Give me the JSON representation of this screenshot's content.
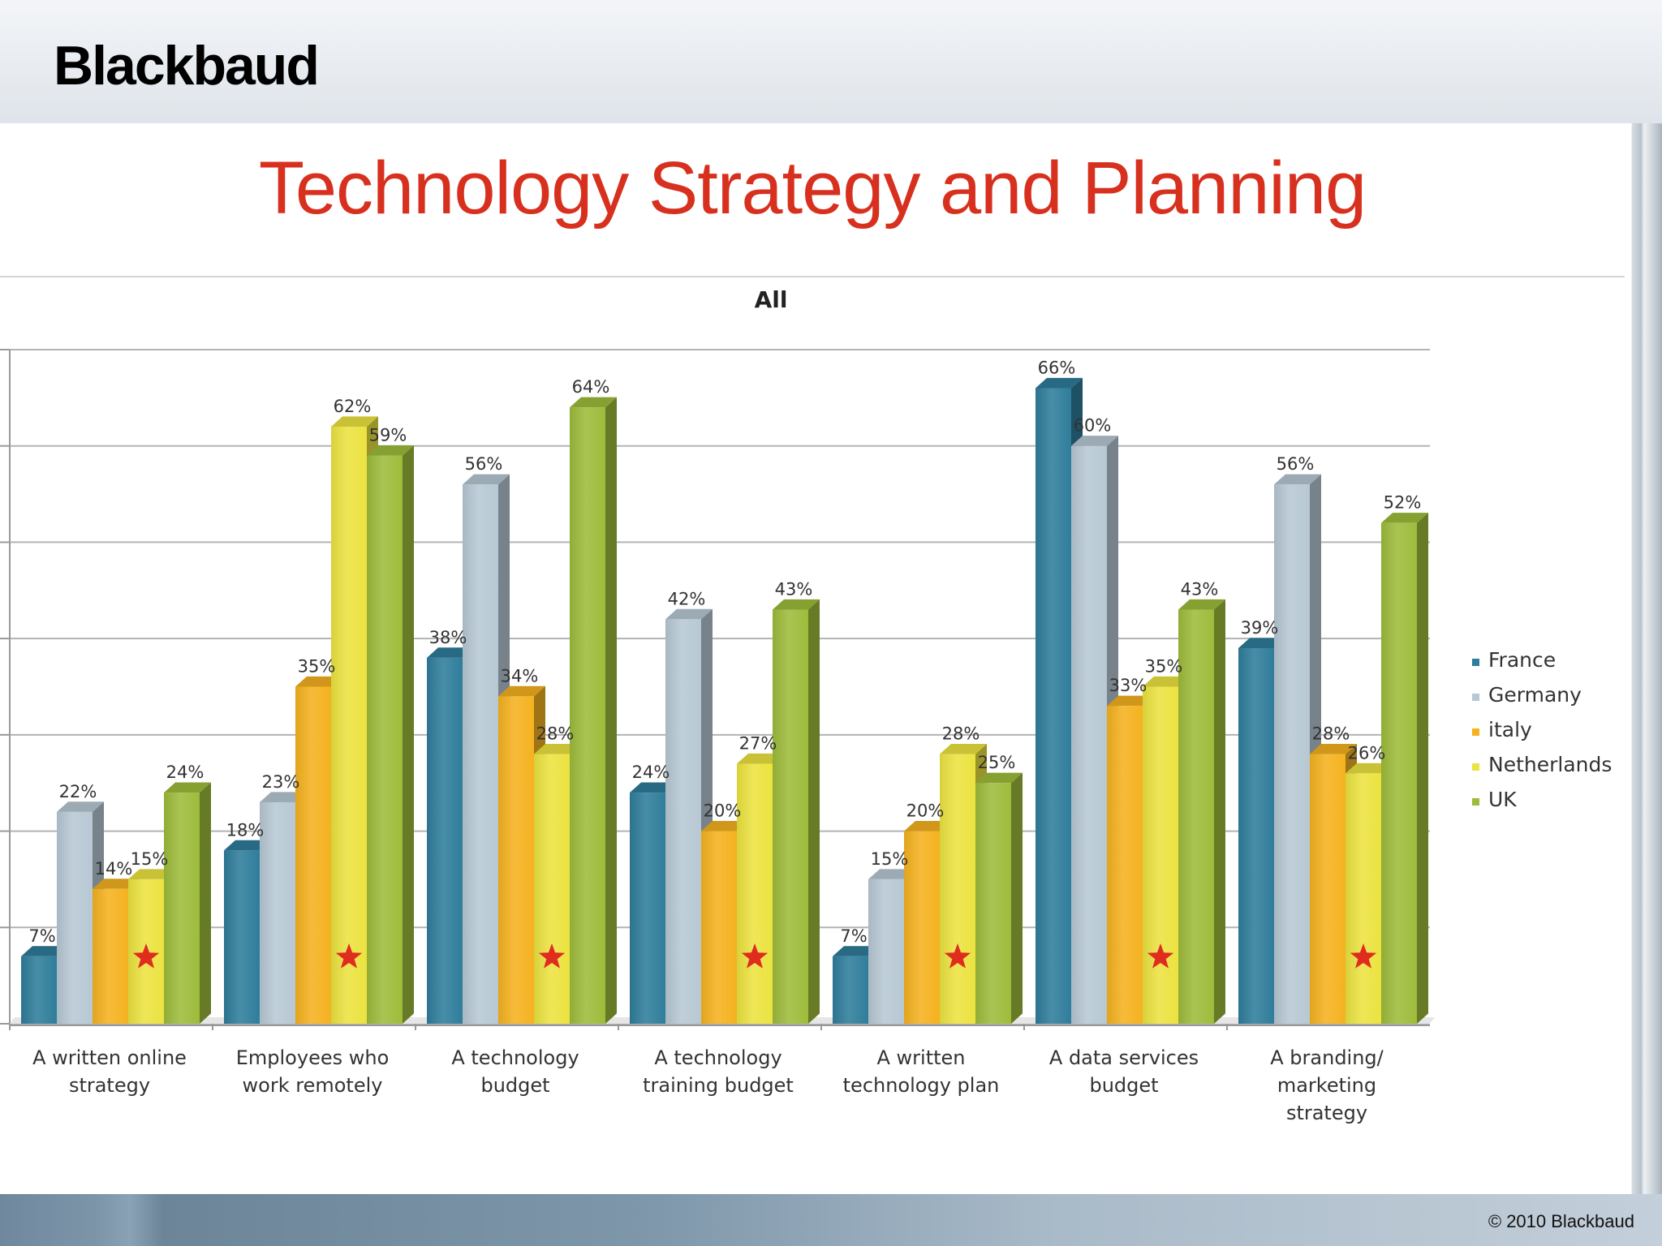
{
  "header": {
    "logo_text": "Blackbaud"
  },
  "slide": {
    "title": "Technology Strategy and Planning"
  },
  "footer": {
    "copyright": "© 2010 Blackbaud"
  },
  "colors": {
    "title": "#d8301e",
    "France": "#2f7d9b",
    "Germany": "#b7c8d4",
    "italy": "#f5b21f",
    "Netherlands": "#ece340",
    "UK": "#9ebc3b",
    "star": "#e02b1f"
  },
  "chart_data": {
    "type": "bar",
    "title": "All",
    "xlabel": "",
    "ylabel": "",
    "ylim": [
      0,
      70
    ],
    "grid": true,
    "legend_position": "right",
    "categories": [
      [
        "A written online",
        "strategy"
      ],
      [
        "Employees who",
        "work remotely"
      ],
      [
        "A technology",
        "budget"
      ],
      [
        "A technology",
        "training budget"
      ],
      [
        "A written",
        "technology plan"
      ],
      [
        "A data services",
        "budget"
      ],
      [
        "A branding/",
        "marketing",
        "strategy"
      ]
    ],
    "series": [
      {
        "name": "France",
        "values": [
          7,
          18,
          38,
          24,
          7,
          66,
          39
        ]
      },
      {
        "name": "Germany",
        "values": [
          22,
          23,
          56,
          42,
          15,
          60,
          56
        ]
      },
      {
        "name": "italy",
        "values": [
          14,
          35,
          34,
          20,
          20,
          33,
          28
        ]
      },
      {
        "name": "Netherlands",
        "values": [
          15,
          62,
          28,
          27,
          28,
          35,
          26
        ]
      },
      {
        "name": "UK",
        "values": [
          24,
          59,
          64,
          43,
          25,
          43,
          52
        ]
      }
    ],
    "value_suffix": "%",
    "annotations": [
      {
        "type": "star",
        "series": "Netherlands",
        "category_index": 0
      },
      {
        "type": "star",
        "series": "Netherlands",
        "category_index": 1
      },
      {
        "type": "star",
        "series": "Netherlands",
        "category_index": 2
      },
      {
        "type": "star",
        "series": "Netherlands",
        "category_index": 3
      },
      {
        "type": "star",
        "series": "Netherlands",
        "category_index": 4
      },
      {
        "type": "star",
        "series": "Netherlands",
        "category_index": 5
      },
      {
        "type": "star",
        "series": "Netherlands",
        "category_index": 6
      }
    ]
  }
}
